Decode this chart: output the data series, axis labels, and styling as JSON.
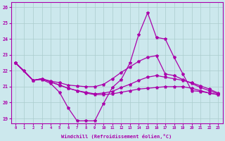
{
  "background_color": "#cce8ed",
  "line_color": "#aa00aa",
  "grid_color": "#b8dde4",
  "xlabel": "Windchill (Refroidissement éolien,°C)",
  "xlim_min": -0.5,
  "xlim_max": 23.5,
  "ylim_min": 18.7,
  "ylim_max": 26.3,
  "yticks": [
    19,
    20,
    21,
    22,
    23,
    24,
    25,
    26
  ],
  "xticks": [
    0,
    1,
    2,
    3,
    4,
    5,
    6,
    7,
    8,
    9,
    10,
    11,
    12,
    13,
    14,
    15,
    16,
    17,
    18,
    19,
    20,
    21,
    22,
    23
  ],
  "line1_x": [
    0,
    1,
    2,
    3,
    4,
    5,
    6,
    7,
    8,
    9,
    10,
    11,
    12,
    13,
    14,
    15,
    16,
    17,
    18,
    19,
    20,
    21,
    22,
    23
  ],
  "line1_y": [
    22.5,
    22.0,
    21.4,
    21.45,
    21.2,
    20.65,
    19.65,
    18.85,
    18.85,
    18.85,
    19.95,
    20.95,
    21.45,
    22.5,
    24.3,
    25.65,
    24.1,
    24.0,
    22.85,
    21.8,
    20.75,
    20.7,
    20.6,
    20.5
  ],
  "line2_x": [
    0,
    2,
    3,
    4,
    5,
    6,
    7,
    8,
    9,
    10,
    11,
    12,
    13,
    14,
    15,
    16,
    17,
    18,
    19,
    20,
    21,
    22,
    23
  ],
  "line2_y": [
    22.5,
    21.4,
    21.5,
    21.35,
    21.25,
    21.1,
    21.05,
    21.0,
    21.0,
    21.15,
    21.5,
    21.9,
    22.25,
    22.6,
    22.85,
    22.95,
    21.8,
    21.7,
    21.45,
    21.2,
    20.95,
    20.75,
    20.55
  ],
  "line3_x": [
    0,
    2,
    3,
    4,
    5,
    6,
    7,
    8,
    9,
    10,
    11,
    12,
    13,
    14,
    15,
    16,
    17,
    18,
    19,
    20,
    21,
    22,
    23
  ],
  "line3_y": [
    22.5,
    21.4,
    21.5,
    21.3,
    21.1,
    20.9,
    20.75,
    20.65,
    20.55,
    20.6,
    20.7,
    20.95,
    21.15,
    21.4,
    21.6,
    21.7,
    21.6,
    21.5,
    21.4,
    21.25,
    21.05,
    20.85,
    20.6
  ],
  "line4_x": [
    0,
    2,
    3,
    4,
    5,
    6,
    7,
    8,
    9,
    10,
    11,
    12,
    13,
    14,
    15,
    16,
    17,
    18,
    19,
    20,
    21,
    22,
    23
  ],
  "line4_y": [
    22.5,
    21.4,
    21.5,
    21.3,
    21.1,
    20.9,
    20.75,
    20.6,
    20.5,
    20.5,
    20.55,
    20.65,
    20.75,
    20.85,
    20.9,
    20.95,
    21.0,
    21.0,
    21.0,
    20.9,
    20.75,
    20.6,
    20.5
  ]
}
